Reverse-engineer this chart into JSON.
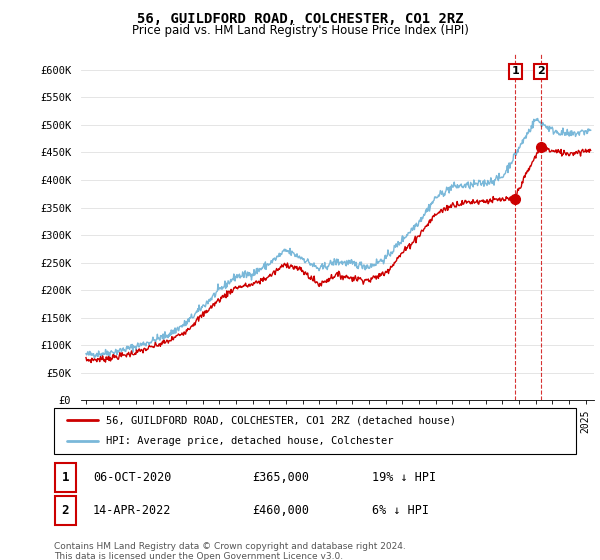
{
  "title": "56, GUILDFORD ROAD, COLCHESTER, CO1 2RZ",
  "subtitle": "Price paid vs. HM Land Registry's House Price Index (HPI)",
  "ylabel_ticks": [
    "£0",
    "£50K",
    "£100K",
    "£150K",
    "£200K",
    "£250K",
    "£300K",
    "£350K",
    "£400K",
    "£450K",
    "£500K",
    "£550K",
    "£600K"
  ],
  "ylim": [
    0,
    620000
  ],
  "xlim_start": 1994.7,
  "xlim_end": 2025.5,
  "hpi_color": "#7ab8d9",
  "price_color": "#cc0000",
  "annotation_box_color": "#cc0000",
  "legend_label_red": "56, GUILDFORD ROAD, COLCHESTER, CO1 2RZ (detached house)",
  "legend_label_blue": "HPI: Average price, detached house, Colchester",
  "transaction1_date": "06-OCT-2020",
  "transaction1_price": "£365,000",
  "transaction1_hpi": "19% ↓ HPI",
  "transaction2_date": "14-APR-2022",
  "transaction2_price": "£460,000",
  "transaction2_hpi": "6% ↓ HPI",
  "footer": "Contains HM Land Registry data © Crown copyright and database right 2024.\nThis data is licensed under the Open Government Licence v3.0.",
  "background_color": "#ffffff",
  "grid_color": "#e0e0e0",
  "transaction1_x": 2020.77,
  "transaction1_y": 365000,
  "transaction2_x": 2022.29,
  "transaction2_y": 460000
}
